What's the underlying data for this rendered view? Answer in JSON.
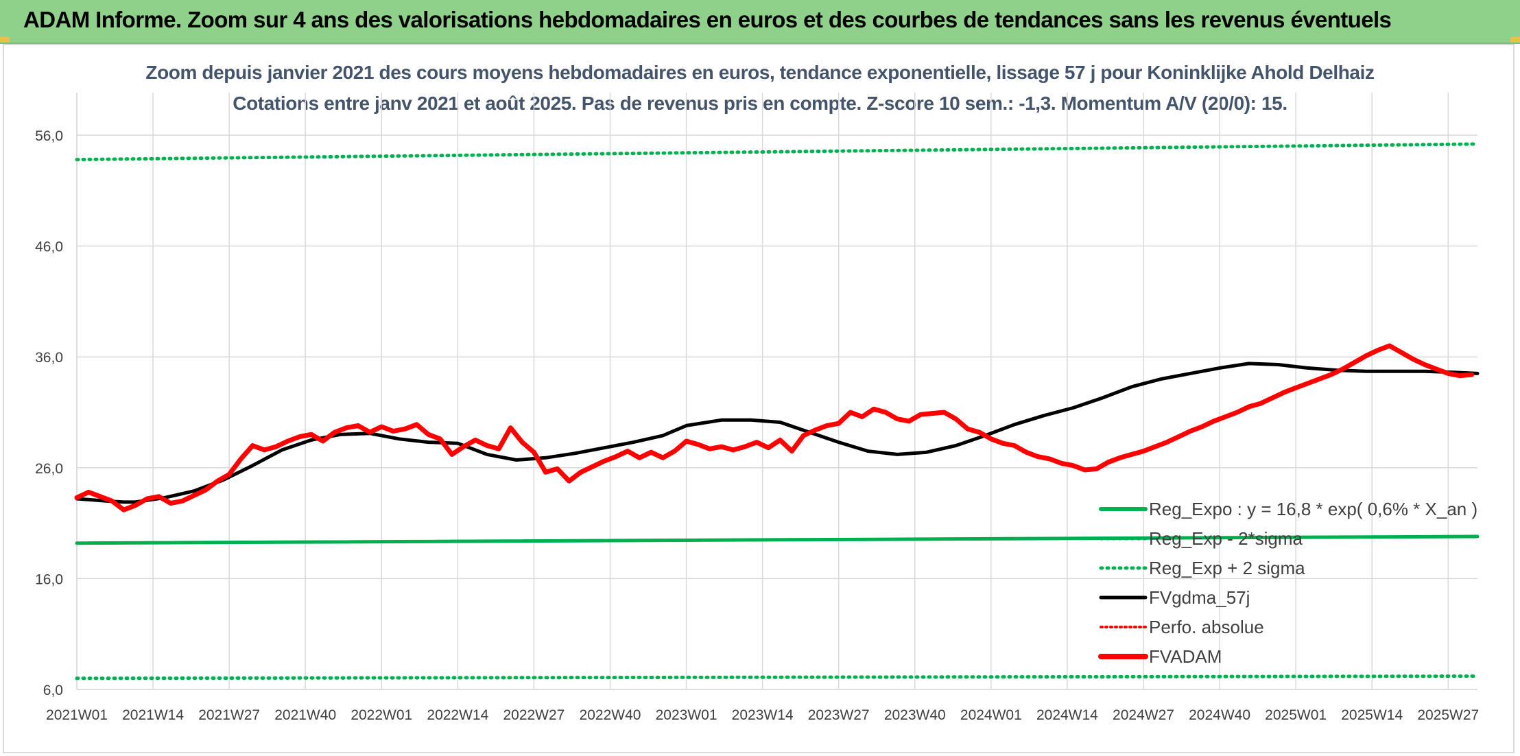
{
  "banner": {
    "title": "ADAM Informe. Zoom sur 4 ans des valorisations hebdomadaires en euros et des courbes de tendances sans les revenus éventuels"
  },
  "colors": {
    "banner_bg": "#8fd18b",
    "reg_green": "#00b050",
    "fvgdma_black": "#000000",
    "fvadam_red": "#ff0000",
    "title_text": "#44546a",
    "axis_text": "#404040",
    "grid": "#d9d9d9"
  },
  "chart_data": {
    "type": "line",
    "title_lines": [
      "Zoom depuis janvier 2021 des cours moyens hebdomadaires en euros, tendance exponentielle, lissage 57 j pour Koninklijke Ahold Delhaiz",
      "Cotations entre janv 2021 et août 2025. Pas de revenus pris en compte. Z-score 10 sem.: -1,3. Momentum A/V (20/0): 15."
    ],
    "x_tick_labels": [
      "2021W01",
      "2021W14",
      "2021W27",
      "2021W40",
      "2022W01",
      "2022W14",
      "2022W27",
      "2022W40",
      "2023W01",
      "2023W14",
      "2023W27",
      "2023W40",
      "2024W01",
      "2024W14",
      "2024W27",
      "2024W40",
      "2025W01",
      "2025W14",
      "2025W27"
    ],
    "x_range": [
      0,
      239
    ],
    "y_tick_labels": [
      "6,0",
      "16,0",
      "26,0",
      "36,0",
      "46,0",
      "56,0"
    ],
    "ylim": [
      6,
      56
    ],
    "grid": true,
    "legend_position": "bottom-right inside plot",
    "legend": [
      {
        "label": "Reg_Expo : y = 16,8 * exp( 0,6% *  X_an )",
        "style": "solid",
        "color": "#00b050"
      },
      {
        "label": "Reg_Exp - 2*sigma",
        "style": "dotted",
        "color": "#00b050"
      },
      {
        "label": "Reg_Exp + 2 sigma",
        "style": "dotted",
        "color": "#00b050"
      },
      {
        "label": "FVgdma_57j",
        "style": "solid",
        "color": "#000000"
      },
      {
        "label": "Perfo. absolue",
        "style": "dotted",
        "color": "#ff0000"
      },
      {
        "label": "FVADAM",
        "style": "solid",
        "color": "#ff0000"
      }
    ],
    "series": [
      {
        "name": "Reg_Expo : y = 16,8 * exp( 0,6% *  X_an )",
        "x": [
          0,
          239
        ],
        "values": [
          19.2,
          19.8
        ]
      },
      {
        "name": "Reg_Exp - 2*sigma",
        "x": [
          0,
          239
        ],
        "values": [
          7.0,
          7.2
        ]
      },
      {
        "name": "Reg_Exp + 2 sigma",
        "x": [
          0,
          239
        ],
        "values": [
          53.8,
          55.2
        ]
      },
      {
        "name": "FVgdma_57j",
        "x": [
          0,
          5,
          8,
          10,
          15,
          20,
          25,
          30,
          35,
          40,
          45,
          50,
          55,
          60,
          65,
          70,
          75,
          80,
          85,
          90,
          95,
          100,
          104,
          110,
          115,
          120,
          125,
          130,
          135,
          140,
          145,
          150,
          155,
          160,
          165,
          170,
          175,
          180,
          185,
          190,
          195,
          200,
          205,
          210,
          215,
          220,
          225,
          230,
          235,
          239
        ],
        "values": [
          23.2,
          23.0,
          22.9,
          22.9,
          23.3,
          23.9,
          24.9,
          26.2,
          27.6,
          28.5,
          29.0,
          29.1,
          28.6,
          28.3,
          28.2,
          27.2,
          26.7,
          26.9,
          27.3,
          27.8,
          28.3,
          28.9,
          29.8,
          30.3,
          30.3,
          30.1,
          29.2,
          28.3,
          27.5,
          27.2,
          27.4,
          28.0,
          28.9,
          29.9,
          30.7,
          31.4,
          32.3,
          33.3,
          34.0,
          34.5,
          35.0,
          35.4,
          35.3,
          35.0,
          34.8,
          34.7,
          34.7,
          34.7,
          34.6,
          34.5
        ]
      },
      {
        "name": "FVADAM",
        "x": [
          0,
          2,
          4,
          6,
          8,
          10,
          12,
          14,
          16,
          18,
          20,
          22,
          24,
          26,
          28,
          30,
          32,
          34,
          36,
          38,
          40,
          42,
          44,
          46,
          48,
          50,
          52,
          54,
          56,
          58,
          60,
          62,
          64,
          66,
          68,
          70,
          72,
          74,
          76,
          78,
          80,
          82,
          84,
          86,
          88,
          90,
          92,
          94,
          96,
          98,
          100,
          102,
          104,
          106,
          108,
          110,
          112,
          114,
          116,
          118,
          120,
          122,
          124,
          126,
          128,
          130,
          132,
          134,
          136,
          138,
          140,
          142,
          144,
          146,
          148,
          150,
          152,
          154,
          156,
          158,
          160,
          162,
          164,
          166,
          168,
          170,
          172,
          174,
          176,
          178,
          180,
          182,
          184,
          186,
          188,
          190,
          192,
          194,
          196,
          198,
          200,
          202,
          204,
          206,
          208,
          210,
          212,
          214,
          216,
          218,
          220,
          222,
          224,
          226,
          228,
          230,
          232,
          234,
          236,
          238
        ],
        "values": [
          23.3,
          23.8,
          23.4,
          23.0,
          22.2,
          22.6,
          23.2,
          23.4,
          22.8,
          23.0,
          23.5,
          24.0,
          24.8,
          25.4,
          26.8,
          28.0,
          27.6,
          27.9,
          28.4,
          28.8,
          29.0,
          28.4,
          29.2,
          29.6,
          29.8,
          29.2,
          29.7,
          29.3,
          29.5,
          29.9,
          29.0,
          28.6,
          27.2,
          27.9,
          28.5,
          28.0,
          27.7,
          29.6,
          28.3,
          27.4,
          25.6,
          25.9,
          24.8,
          25.6,
          26.1,
          26.6,
          27.0,
          27.5,
          26.9,
          27.4,
          26.9,
          27.5,
          28.4,
          28.1,
          27.7,
          27.9,
          27.6,
          27.9,
          28.3,
          27.8,
          28.5,
          27.5,
          28.9,
          29.4,
          29.8,
          30.0,
          31.0,
          30.6,
          31.3,
          31.0,
          30.4,
          30.2,
          30.8,
          30.9,
          31.0,
          30.4,
          29.5,
          29.2,
          28.6,
          28.2,
          28.0,
          27.4,
          27.0,
          26.8,
          26.4,
          26.2,
          25.8,
          25.9,
          26.5,
          26.9,
          27.2,
          27.5,
          27.9,
          28.3,
          28.8,
          29.3,
          29.7,
          30.2,
          30.6,
          31.0,
          31.5,
          31.8,
          32.3,
          32.8,
          33.2,
          33.6,
          34.0,
          34.4,
          34.9,
          35.5,
          36.1,
          36.6,
          37.0,
          36.4,
          35.8,
          35.3,
          34.9,
          34.5,
          34.3,
          34.4
        ]
      }
    ]
  }
}
